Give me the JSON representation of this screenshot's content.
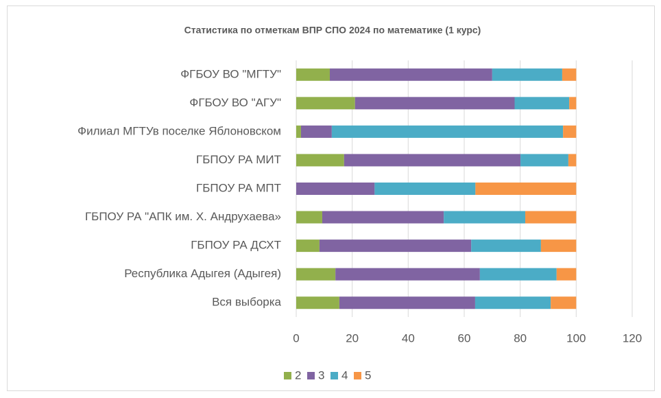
{
  "chart_data": {
    "type": "stacked-barh",
    "title": "Статистика по отметкам ВПР СПО 2024 по математике (1 курс)",
    "categories": [
      "ФГБОУ ВО \"МГТУ\"",
      "ФГБОУ ВО \"АГУ\"",
      "Филиал МГТУв поселке Яблоновском",
      "ГБПОУ РА МИТ",
      "ГБПОУ РА МПТ",
      "ГБПОУ РА \"АПК им. Х. Андрухаева»",
      "ГБПОУ РА ДСХТ",
      "Республика Адыгея (Адыгея)",
      "Вся выборка"
    ],
    "series": [
      {
        "name": "2",
        "color": "#92b04c",
        "values": [
          12,
          21,
          1.7,
          17.1,
          0,
          9.3,
          8.3,
          14,
          15.4
        ]
      },
      {
        "name": "3",
        "color": "#8064a2",
        "values": [
          58,
          57,
          11,
          63,
          28,
          43.4,
          54.2,
          51.6,
          48.5
        ]
      },
      {
        "name": "4",
        "color": "#4bacc6",
        "values": [
          25,
          19.5,
          82.6,
          17.1,
          36,
          29.1,
          24.9,
          27.4,
          27
        ]
      },
      {
        "name": "5",
        "color": "#f79646",
        "values": [
          5,
          2.5,
          4.7,
          2.8,
          36,
          18.2,
          12.6,
          7,
          9.1
        ]
      }
    ],
    "xlim": [
      0,
      120
    ],
    "xticks": [
      0,
      20,
      40,
      60,
      80,
      100,
      120
    ],
    "grid": true,
    "legend": "bottom"
  }
}
